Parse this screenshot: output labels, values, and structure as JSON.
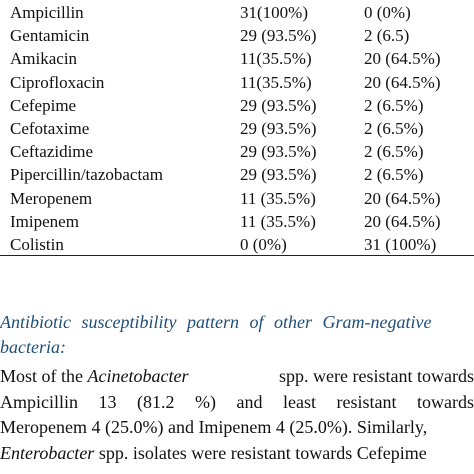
{
  "table": {
    "rows": [
      {
        "name": "Ampicillin",
        "resistant": "31(100%)",
        "sensitive": "0 (0%)"
      },
      {
        "name": "Gentamicin",
        "resistant": "29 (93.5%)",
        "sensitive": "2 (6.5)"
      },
      {
        "name": "Amikacin",
        "resistant": "11(35.5%)",
        "sensitive": "20 (64.5%)"
      },
      {
        "name": "Ciprofloxacin",
        "resistant": "11(35.5%)",
        "sensitive": "20 (64.5%)"
      },
      {
        "name": "Cefepime",
        "resistant": "29 (93.5%)",
        "sensitive": "2 (6.5%)"
      },
      {
        "name": "Cefotaxime",
        "resistant": "29 (93.5%)",
        "sensitive": "2 (6.5%)"
      },
      {
        "name": "Ceftazidime",
        "resistant": "29 (93.5%)",
        "sensitive": "2 (6.5%)"
      },
      {
        "name": "Pipercillin/tazobactam",
        "resistant": "29 (93.5%)",
        "sensitive": "2 (6.5%)"
      },
      {
        "name": "Meropenem",
        "resistant": "11 (35.5%)",
        "sensitive": "20 (64.5%)"
      },
      {
        "name": "Imipenem",
        "resistant": "11 (35.5%)",
        "sensitive": "20 (64.5%)"
      },
      {
        "name": "Colistin",
        "resistant": "0 (0%)",
        "sensitive": "31 (100%)"
      }
    ]
  },
  "section": {
    "heading_line1": "Antibiotic  susceptibility  pattern  of  other  Gram-negative",
    "heading_line2": "bacteria:",
    "para": {
      "l1_a": "Most of the ",
      "l1_b": "Acinetobacter",
      "l1_c": " spp. were resistant towards",
      "l2_a": "Ampicillin",
      "l2_b": "13",
      "l2_c": "(81.2",
      "l2_d": "%)",
      "l2_e": "and",
      "l2_f": "least",
      "l2_g": "resistant",
      "l2_h": "towards",
      "l3": "Meropenem 4 (25.0%) and Imipenem 4 (25.0%). Similarly,",
      "l4_a": "Enterobacter",
      "l4_b": " spp. isolates were resistant towards Cefepime"
    }
  }
}
